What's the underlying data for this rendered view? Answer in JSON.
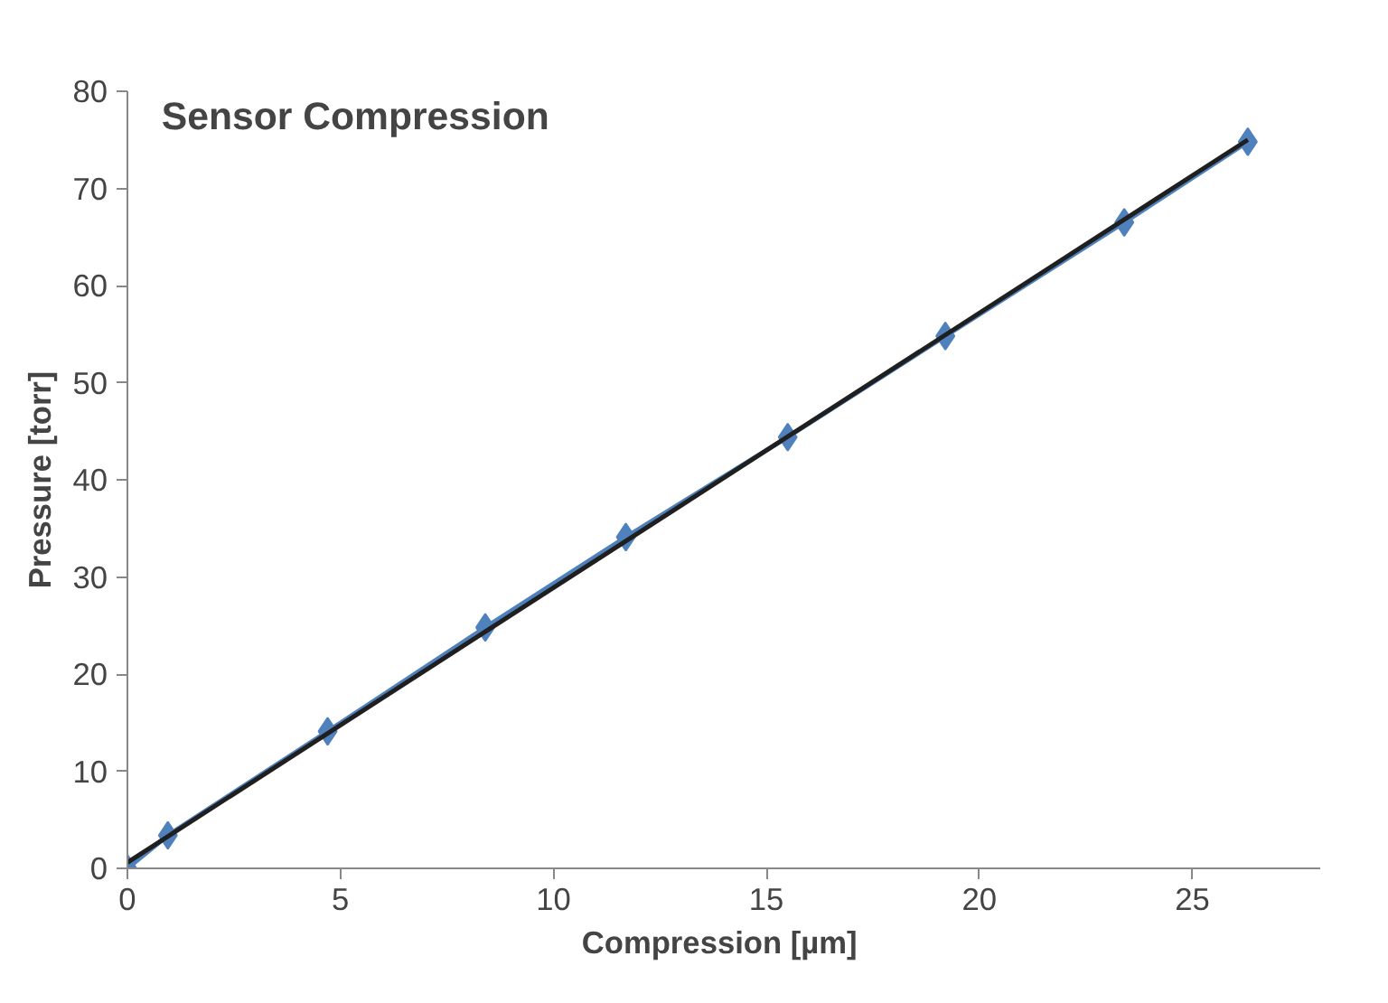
{
  "chart_data": {
    "type": "line",
    "title": "Sensor Compression",
    "xlabel": "Compression  [µm]",
    "ylabel": "Pressure [torr]",
    "xlim": [
      0,
      28
    ],
    "xticks": [
      0,
      5,
      10,
      15,
      20,
      25
    ],
    "ylim": [
      0,
      80
    ],
    "yticks": [
      0,
      10,
      20,
      30,
      40,
      50,
      60,
      70,
      80
    ],
    "grid": false,
    "marker": "diamond",
    "series": [
      {
        "color": "#4f81bd",
        "x": [
          0,
          0.95,
          4.7,
          8.4,
          11.7,
          15.5,
          19.2,
          23.4,
          26.3
        ],
        "values": [
          0,
          3.4,
          14.1,
          24.8,
          34.1,
          44.4,
          54.8,
          66.5,
          74.8
        ]
      },
      {
        "color": "#1f1f1f",
        "marker": "none",
        "x": [
          0,
          26.3
        ],
        "values": [
          0.6,
          75
        ]
      }
    ]
  }
}
